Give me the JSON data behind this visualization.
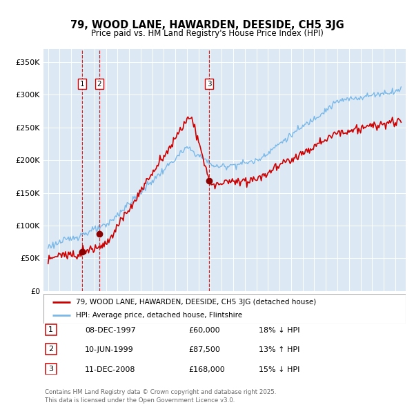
{
  "title": "79, WOOD LANE, HAWARDEN, DEESIDE, CH5 3JG",
  "subtitle": "Price paid vs. HM Land Registry's House Price Index (HPI)",
  "plot_bg_color": "#dce9f5",
  "ylim": [
    0,
    370000
  ],
  "yticks": [
    0,
    50000,
    100000,
    150000,
    200000,
    250000,
    300000,
    350000
  ],
  "sale_dates_num": [
    1997.92,
    1999.42,
    2008.92
  ],
  "sale_prices": [
    60000,
    87500,
    168000
  ],
  "sale_labels": [
    "1",
    "2",
    "3"
  ],
  "sale_info": [
    {
      "label": "1",
      "date": "08-DEC-1997",
      "price": "£60,000",
      "hpi": "18% ↓ HPI"
    },
    {
      "label": "2",
      "date": "10-JUN-1999",
      "price": "£87,500",
      "hpi": "13% ↑ HPI"
    },
    {
      "label": "3",
      "date": "11-DEC-2008",
      "price": "£168,000",
      "hpi": "15% ↓ HPI"
    }
  ],
  "legend_line1": "79, WOOD LANE, HAWARDEN, DEESIDE, CH5 3JG (detached house)",
  "legend_line2": "HPI: Average price, detached house, Flintshire",
  "footer": "Contains HM Land Registry data © Crown copyright and database right 2025.\nThis data is licensed under the Open Government Licence v3.0.",
  "hpi_color": "#7ab8e8",
  "price_color": "#cc0000",
  "vline_color": "#cc0000",
  "xlim_left": 1994.6,
  "xlim_right": 2025.9
}
